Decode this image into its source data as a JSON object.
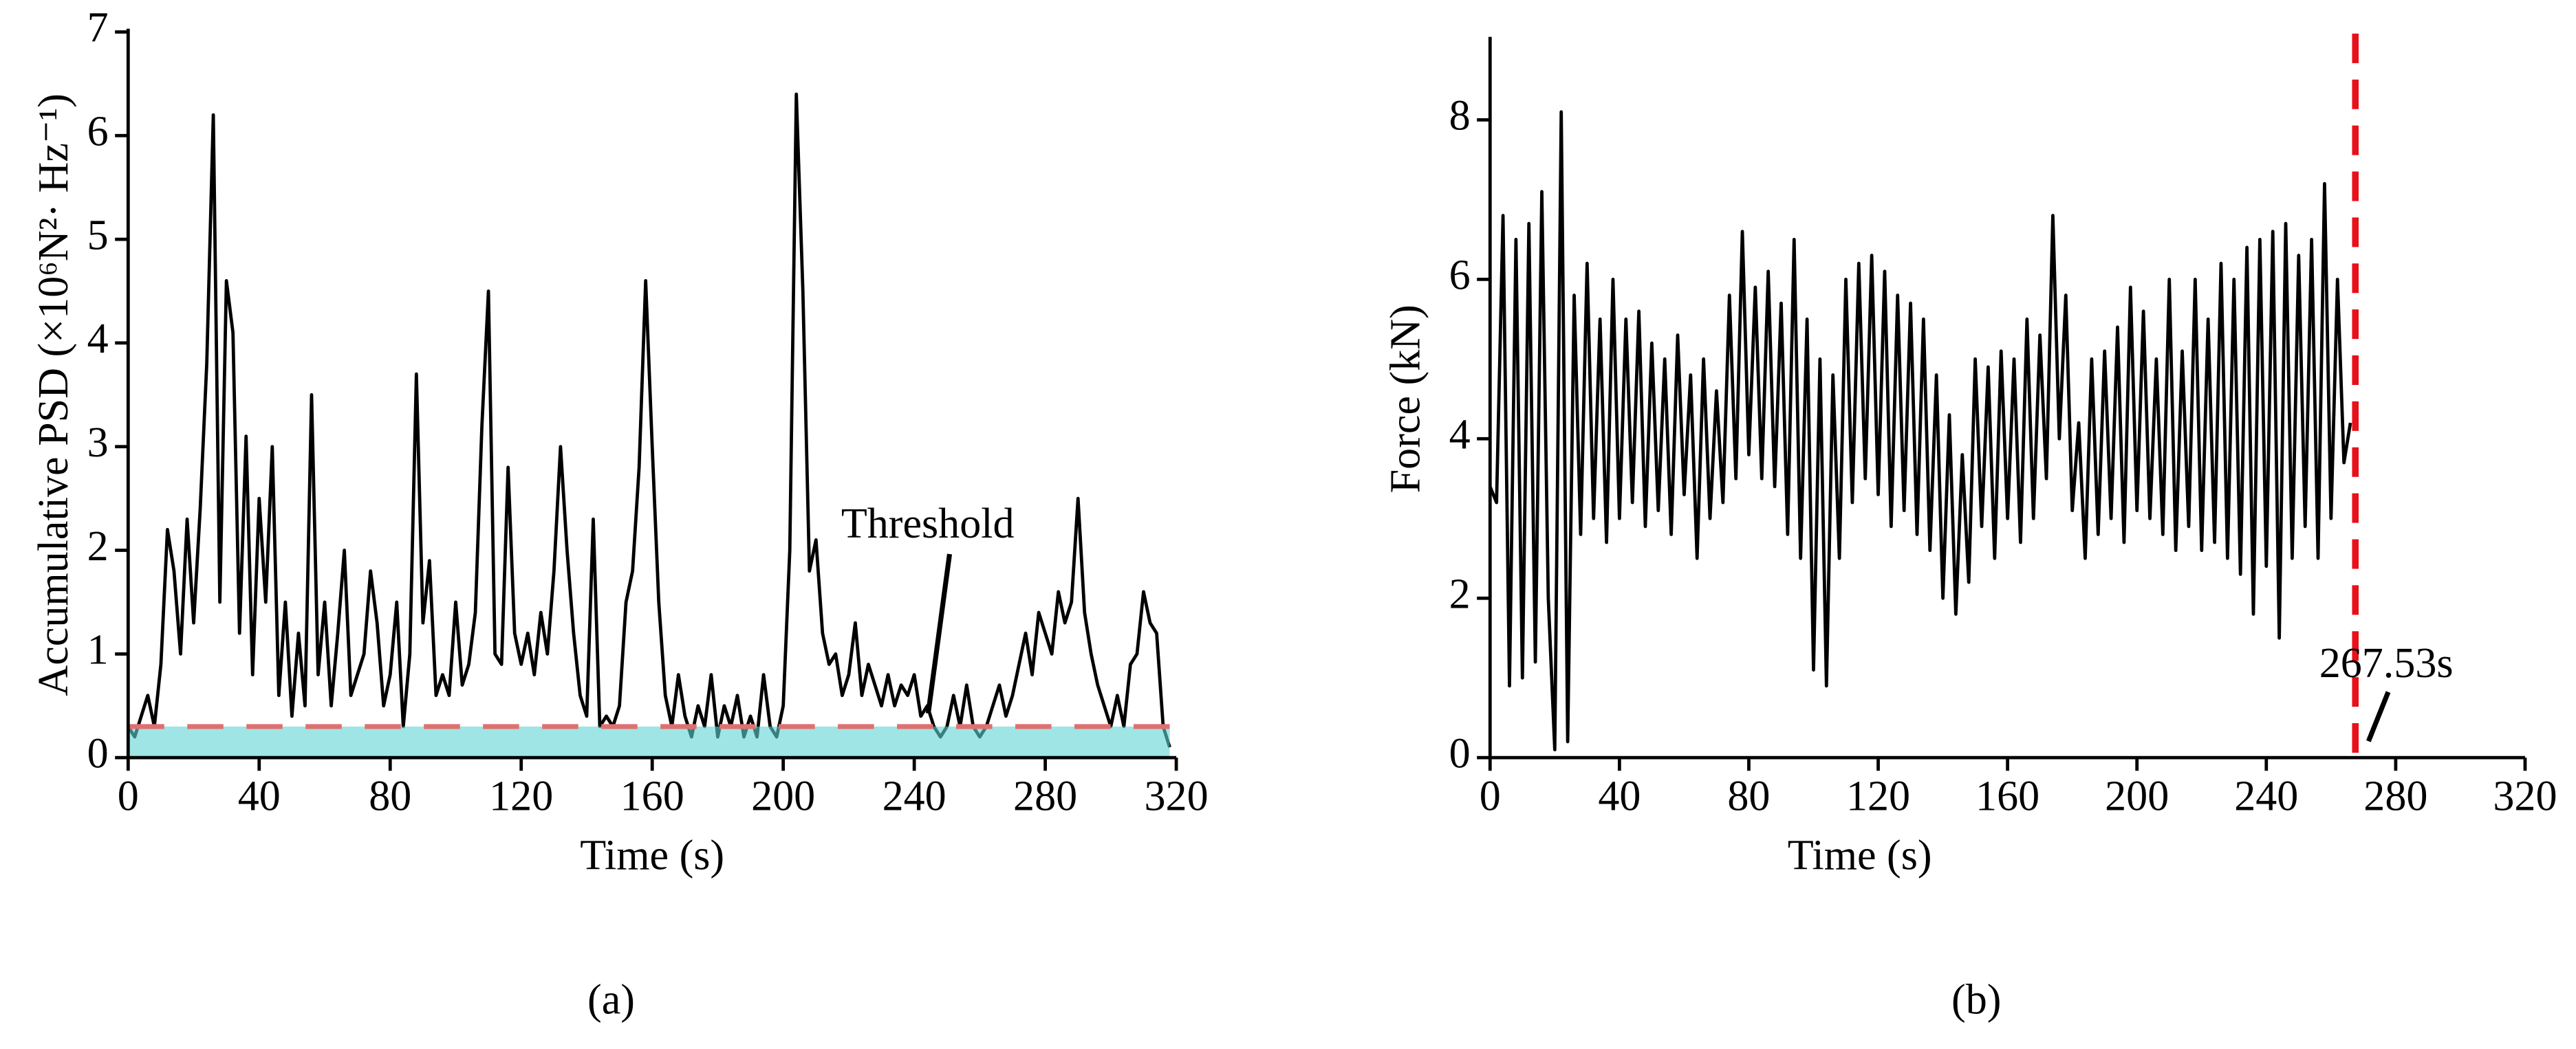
{
  "chart_data": [
    {
      "type": "line",
      "panel_label": "(a)",
      "xlabel": "Time (s)",
      "ylabel": "Accumulative PSD (×10⁶N²· Hz⁻¹)",
      "color": "#000000",
      "xlim": [
        0,
        320
      ],
      "ylim": [
        0,
        7
      ],
      "xticks": [
        0,
        40,
        80,
        120,
        160,
        200,
        240,
        280,
        320
      ],
      "yticks": [
        0,
        1,
        2,
        3,
        4,
        5,
        6,
        7
      ],
      "threshold": {
        "value": 0.3,
        "label": "Threshold",
        "color": "#e07070",
        "band_color": "#5fd3d3"
      },
      "x": [
        0,
        2,
        4,
        6,
        8,
        10,
        12,
        14,
        16,
        18,
        20,
        22,
        24,
        26,
        28,
        30,
        32,
        34,
        36,
        38,
        40,
        42,
        44,
        46,
        48,
        50,
        52,
        54,
        56,
        58,
        60,
        62,
        64,
        66,
        68,
        70,
        72,
        74,
        76,
        78,
        80,
        82,
        84,
        86,
        88,
        90,
        92,
        94,
        96,
        98,
        100,
        102,
        104,
        106,
        108,
        110,
        112,
        114,
        116,
        118,
        120,
        122,
        124,
        126,
        128,
        130,
        132,
        134,
        136,
        138,
        140,
        142,
        144,
        146,
        148,
        150,
        152,
        154,
        156,
        158,
        160,
        162,
        164,
        166,
        168,
        170,
        172,
        174,
        176,
        178,
        180,
        182,
        184,
        186,
        188,
        190,
        192,
        194,
        196,
        198,
        200,
        202,
        204,
        206,
        208,
        210,
        212,
        214,
        216,
        218,
        220,
        222,
        224,
        226,
        228,
        230,
        232,
        234,
        236,
        238,
        240,
        242,
        244,
        246,
        248,
        250,
        252,
        254,
        256,
        258,
        260,
        262,
        264,
        266,
        268,
        270,
        272,
        274,
        276,
        278,
        280,
        282,
        284,
        286,
        288,
        290,
        292,
        294,
        296,
        298,
        300,
        302,
        304,
        306,
        308,
        310,
        312,
        314,
        316,
        318
      ],
      "values": [
        0.3,
        0.2,
        0.4,
        0.6,
        0.3,
        0.9,
        2.2,
        1.8,
        1.0,
        2.3,
        1.3,
        2.4,
        3.8,
        6.2,
        1.5,
        4.6,
        4.1,
        1.2,
        3.1,
        0.8,
        2.5,
        1.5,
        3.0,
        0.6,
        1.5,
        0.4,
        1.2,
        0.5,
        3.5,
        0.8,
        1.5,
        0.5,
        1.2,
        2.0,
        0.6,
        0.8,
        1.0,
        1.8,
        1.3,
        0.5,
        0.8,
        1.5,
        0.3,
        1.0,
        3.7,
        1.3,
        1.9,
        0.6,
        0.8,
        0.6,
        1.5,
        0.7,
        0.9,
        1.4,
        3.2,
        4.5,
        1.0,
        0.9,
        2.8,
        1.2,
        0.9,
        1.2,
        0.8,
        1.4,
        1.0,
        1.8,
        3.0,
        2.0,
        1.2,
        0.6,
        0.4,
        2.3,
        0.3,
        0.4,
        0.3,
        0.5,
        1.5,
        1.8,
        2.8,
        4.6,
        3.0,
        1.5,
        0.6,
        0.3,
        0.8,
        0.4,
        0.2,
        0.5,
        0.3,
        0.8,
        0.2,
        0.5,
        0.3,
        0.6,
        0.2,
        0.4,
        0.2,
        0.8,
        0.3,
        0.2,
        0.5,
        2.0,
        6.4,
        4.5,
        1.8,
        2.1,
        1.2,
        0.9,
        1.0,
        0.6,
        0.8,
        1.3,
        0.6,
        0.9,
        0.7,
        0.5,
        0.8,
        0.5,
        0.7,
        0.6,
        0.8,
        0.4,
        0.5,
        0.3,
        0.2,
        0.3,
        0.6,
        0.3,
        0.7,
        0.3,
        0.2,
        0.3,
        0.5,
        0.7,
        0.4,
        0.6,
        0.9,
        1.2,
        0.8,
        1.4,
        1.2,
        1.0,
        1.6,
        1.3,
        1.5,
        2.5,
        1.4,
        1.0,
        0.7,
        0.5,
        0.3,
        0.6,
        0.3,
        0.9,
        1.0,
        1.6,
        1.3,
        1.2,
        0.3,
        0.1
      ]
    },
    {
      "type": "line",
      "panel_label": "(b)",
      "xlabel": "Time (s)",
      "ylabel": "Force (kN)",
      "color": "#000000",
      "xlim": [
        0,
        320
      ],
      "ylim": [
        0,
        9
      ],
      "xticks": [
        0,
        40,
        80,
        120,
        160,
        200,
        240,
        280,
        320
      ],
      "yticks": [
        0,
        2,
        4,
        6,
        8
      ],
      "marker_line": {
        "value": 267.53,
        "label": "267.53s",
        "color": "#e8101a"
      },
      "x": [
        0,
        2,
        4,
        6,
        8,
        10,
        12,
        14,
        16,
        18,
        20,
        22,
        24,
        26,
        28,
        30,
        32,
        34,
        36,
        38,
        40,
        42,
        44,
        46,
        48,
        50,
        52,
        54,
        56,
        58,
        60,
        62,
        64,
        66,
        68,
        70,
        72,
        74,
        76,
        78,
        80,
        82,
        84,
        86,
        88,
        90,
        92,
        94,
        96,
        98,
        100,
        102,
        104,
        106,
        108,
        110,
        112,
        114,
        116,
        118,
        120,
        122,
        124,
        126,
        128,
        130,
        132,
        134,
        136,
        138,
        140,
        142,
        144,
        146,
        148,
        150,
        152,
        154,
        156,
        158,
        160,
        162,
        164,
        166,
        168,
        170,
        172,
        174,
        176,
        178,
        180,
        182,
        184,
        186,
        188,
        190,
        192,
        194,
        196,
        198,
        200,
        202,
        204,
        206,
        208,
        210,
        212,
        214,
        216,
        218,
        220,
        222,
        224,
        226,
        228,
        230,
        232,
        234,
        236,
        238,
        240,
        242,
        244,
        246,
        248,
        250,
        252,
        254,
        256,
        258,
        260,
        262,
        264,
        266
      ],
      "values": [
        3.4,
        3.2,
        6.8,
        0.9,
        6.5,
        1.0,
        6.7,
        1.2,
        7.1,
        2.0,
        0.1,
        8.1,
        0.2,
        5.8,
        2.8,
        6.2,
        3.0,
        5.5,
        2.7,
        6.0,
        3.0,
        5.5,
        3.2,
        5.6,
        2.9,
        5.2,
        3.1,
        5.0,
        2.8,
        5.3,
        3.3,
        4.8,
        2.5,
        5.0,
        3.0,
        4.6,
        3.2,
        5.8,
        3.5,
        6.6,
        3.8,
        5.9,
        3.5,
        6.1,
        3.4,
        5.7,
        2.8,
        6.5,
        2.5,
        5.5,
        1.1,
        5.0,
        0.9,
        4.8,
        2.5,
        6.0,
        3.2,
        6.2,
        3.5,
        6.3,
        3.3,
        6.1,
        2.9,
        5.8,
        3.1,
        5.7,
        2.8,
        5.5,
        2.6,
        4.8,
        2.0,
        4.3,
        1.8,
        3.8,
        2.2,
        5.0,
        2.9,
        4.9,
        2.5,
        5.1,
        3.0,
        5.0,
        2.7,
        5.5,
        3.0,
        5.3,
        3.5,
        6.8,
        4.0,
        5.8,
        3.1,
        4.2,
        2.5,
        5.0,
        2.8,
        5.1,
        3.0,
        5.4,
        2.7,
        5.9,
        3.1,
        5.6,
        3.0,
        5.0,
        2.8,
        6.0,
        2.6,
        5.1,
        2.9,
        6.0,
        2.6,
        5.5,
        2.7,
        6.2,
        2.5,
        6.0,
        2.3,
        6.4,
        1.8,
        6.5,
        2.4,
        6.6,
        1.5,
        6.7,
        2.5,
        6.3,
        2.9,
        6.5,
        2.5,
        7.2,
        3.0,
        6.0,
        3.7,
        4.2
      ]
    }
  ]
}
